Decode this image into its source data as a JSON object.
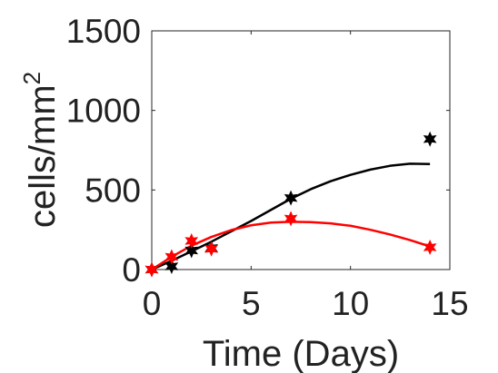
{
  "chart_data": {
    "type": "scatter",
    "title": "",
    "xlabel": "Time (Days)",
    "ylabel": "cells/mm",
    "ylabel_superscript": "2",
    "xlim": [
      0,
      15
    ],
    "ylim": [
      0,
      1500
    ],
    "x_ticks": [
      0,
      5,
      10,
      15
    ],
    "x_tick_labels": [
      "0",
      "5",
      "10",
      "15"
    ],
    "y_ticks": [
      0,
      500,
      1000,
      1500
    ],
    "y_tick_labels": [
      "0",
      "500",
      "1000",
      "1500"
    ],
    "grid": false,
    "legend": "none",
    "series": [
      {
        "color": "#000000",
        "marker": "hexagram",
        "points": [
          {
            "x": 0,
            "y": 0
          },
          {
            "x": 1,
            "y": 20
          },
          {
            "x": 2,
            "y": 120
          },
          {
            "x": 3,
            "y": 135
          },
          {
            "x": 7,
            "y": 450
          },
          {
            "x": 14,
            "y": 820
          }
        ],
        "fit": [
          {
            "x": 0,
            "y": 0
          },
          {
            "x": 1,
            "y": 55
          },
          {
            "x": 2,
            "y": 115
          },
          {
            "x": 3,
            "y": 175
          },
          {
            "x": 4,
            "y": 240
          },
          {
            "x": 5,
            "y": 305
          },
          {
            "x": 6,
            "y": 375
          },
          {
            "x": 7,
            "y": 445
          },
          {
            "x": 8,
            "y": 505
          },
          {
            "x": 9,
            "y": 555
          },
          {
            "x": 10,
            "y": 595
          },
          {
            "x": 11,
            "y": 628
          },
          {
            "x": 12,
            "y": 652
          },
          {
            "x": 13,
            "y": 665
          },
          {
            "x": 14,
            "y": 663
          }
        ]
      },
      {
        "color": "#ff0000",
        "marker": "hexagram",
        "points": [
          {
            "x": 0,
            "y": 0
          },
          {
            "x": 1,
            "y": 80
          },
          {
            "x": 2,
            "y": 180
          },
          {
            "x": 3,
            "y": 130
          },
          {
            "x": 7,
            "y": 320
          },
          {
            "x": 14,
            "y": 140
          }
        ],
        "fit": [
          {
            "x": 0,
            "y": 0
          },
          {
            "x": 1,
            "y": 80
          },
          {
            "x": 2,
            "y": 150
          },
          {
            "x": 3,
            "y": 205
          },
          {
            "x": 4,
            "y": 248
          },
          {
            "x": 5,
            "y": 278
          },
          {
            "x": 6,
            "y": 295
          },
          {
            "x": 7,
            "y": 300
          },
          {
            "x": 8,
            "y": 298
          },
          {
            "x": 9,
            "y": 290
          },
          {
            "x": 10,
            "y": 275
          },
          {
            "x": 11,
            "y": 250
          },
          {
            "x": 12,
            "y": 220
          },
          {
            "x": 13,
            "y": 185
          },
          {
            "x": 14,
            "y": 145
          }
        ]
      }
    ]
  }
}
